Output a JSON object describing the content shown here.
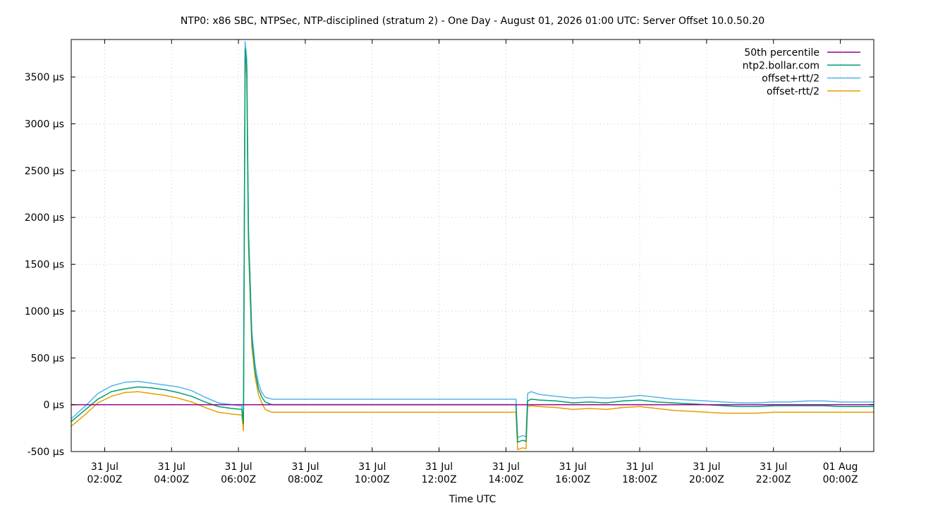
{
  "chart_data": {
    "type": "line",
    "title": "NTP0: x86 SBC, NTPSec, NTP-disciplined (stratum 2) - One Day - August 01, 2026 01:00 UTC: Server Offset 10.0.50.20",
    "xlabel": "Time UTC",
    "ylabel": "",
    "x_unit": "hours",
    "xlim": [
      1.0,
      25.0
    ],
    "ylim": [
      -500,
      3900
    ],
    "y_ticks": [
      {
        "v": -500,
        "label": "-500 µs"
      },
      {
        "v": 0,
        "label": "0 µs"
      },
      {
        "v": 500,
        "label": "500 µs"
      },
      {
        "v": 1000,
        "label": "1000 µs"
      },
      {
        "v": 1500,
        "label": "1500 µs"
      },
      {
        "v": 2000,
        "label": "2000 µs"
      },
      {
        "v": 2500,
        "label": "2500 µs"
      },
      {
        "v": 3000,
        "label": "3000 µs"
      },
      {
        "v": 3500,
        "label": "3500 µs"
      }
    ],
    "x_ticks": [
      {
        "v": 2,
        "line1": "31 Jul",
        "line2": "02:00Z"
      },
      {
        "v": 4,
        "line1": "31 Jul",
        "line2": "04:00Z"
      },
      {
        "v": 6,
        "line1": "31 Jul",
        "line2": "06:00Z"
      },
      {
        "v": 8,
        "line1": "31 Jul",
        "line2": "08:00Z"
      },
      {
        "v": 10,
        "line1": "31 Jul",
        "line2": "10:00Z"
      },
      {
        "v": 12,
        "line1": "31 Jul",
        "line2": "12:00Z"
      },
      {
        "v": 14,
        "line1": "31 Jul",
        "line2": "14:00Z"
      },
      {
        "v": 16,
        "line1": "31 Jul",
        "line2": "16:00Z"
      },
      {
        "v": 18,
        "line1": "31 Jul",
        "line2": "18:00Z"
      },
      {
        "v": 20,
        "line1": "31 Jul",
        "line2": "20:00Z"
      },
      {
        "v": 22,
        "line1": "31 Jul",
        "line2": "22:00Z"
      },
      {
        "v": 24,
        "line1": "01 Aug",
        "line2": "00:00Z"
      }
    ],
    "grid": true,
    "legend_position": "top-right",
    "series": [
      {
        "name": "50th percentile",
        "color": "#94008c",
        "x": [
          1.0,
          25.0
        ],
        "y": [
          0,
          0
        ]
      },
      {
        "name": "ntp2.bollar.com",
        "color": "#009e73",
        "x": [
          1.0,
          1.4,
          1.8,
          2.2,
          2.6,
          3.0,
          3.4,
          3.8,
          4.2,
          4.6,
          5.0,
          5.4,
          5.8,
          6.1,
          6.15,
          6.2,
          6.25,
          6.3,
          6.4,
          6.5,
          6.6,
          6.7,
          6.8,
          7.0,
          7.5,
          8,
          9,
          10,
          11,
          12,
          13,
          14,
          14.3,
          14.35,
          14.5,
          14.6,
          14.65,
          14.75,
          15,
          15.5,
          16,
          16.5,
          17,
          17.5,
          18,
          18.5,
          19,
          19.5,
          20,
          20.5,
          21,
          21.5,
          22,
          22.5,
          23,
          23.5,
          24,
          24.5,
          25
        ],
        "y": [
          -180,
          -60,
          60,
          140,
          170,
          190,
          180,
          160,
          130,
          90,
          30,
          -20,
          -40,
          -50,
          -200,
          3800,
          3600,
          1800,
          700,
          350,
          170,
          80,
          30,
          0,
          0,
          0,
          0,
          0,
          0,
          0,
          0,
          0,
          0,
          -400,
          -380,
          -390,
          40,
          60,
          50,
          40,
          20,
          30,
          20,
          40,
          50,
          30,
          20,
          10,
          0,
          -10,
          -20,
          -20,
          -10,
          -10,
          -10,
          -10,
          -20,
          -20,
          -20
        ]
      },
      {
        "name": "offset+rtt/2",
        "color": "#56b4e9",
        "x": [
          1.0,
          1.4,
          1.8,
          2.2,
          2.6,
          3.0,
          3.4,
          3.8,
          4.2,
          4.6,
          5.0,
          5.4,
          5.8,
          6.1,
          6.15,
          6.2,
          6.25,
          6.3,
          6.4,
          6.5,
          6.6,
          6.7,
          6.8,
          7.0,
          7.5,
          8,
          9,
          10,
          11,
          12,
          13,
          14,
          14.3,
          14.35,
          14.5,
          14.6,
          14.65,
          14.75,
          15,
          15.5,
          16,
          16.5,
          17,
          17.5,
          18,
          18.5,
          19,
          19.5,
          20,
          20.5,
          21,
          21.5,
          22,
          22.5,
          23,
          23.5,
          24,
          24.5,
          25
        ],
        "y": [
          -150,
          -20,
          120,
          200,
          240,
          250,
          230,
          210,
          190,
          150,
          80,
          20,
          0,
          -10,
          -180,
          3880,
          3700,
          1900,
          780,
          420,
          230,
          130,
          80,
          60,
          60,
          60,
          60,
          60,
          60,
          60,
          60,
          60,
          60,
          -350,
          -330,
          -340,
          120,
          140,
          110,
          90,
          70,
          80,
          70,
          80,
          100,
          80,
          60,
          50,
          40,
          30,
          20,
          20,
          30,
          30,
          40,
          40,
          30,
          30,
          30
        ]
      },
      {
        "name": "offset-rtt/2",
        "color": "#e69f00",
        "x": [
          1.0,
          1.4,
          1.8,
          2.2,
          2.6,
          3.0,
          3.4,
          3.8,
          4.2,
          4.6,
          5.0,
          5.4,
          5.8,
          6.1,
          6.15,
          6.2,
          6.25,
          6.3,
          6.4,
          6.5,
          6.6,
          6.7,
          6.8,
          7.0,
          7.5,
          8,
          9,
          10,
          11,
          12,
          13,
          14,
          14.3,
          14.35,
          14.5,
          14.6,
          14.65,
          14.75,
          15,
          15.5,
          16,
          16.5,
          17,
          17.5,
          18,
          18.5,
          19,
          19.5,
          20,
          20.5,
          21,
          21.5,
          22,
          22.5,
          23,
          23.5,
          24,
          24.5,
          25
        ],
        "y": [
          -230,
          -110,
          20,
          90,
          130,
          140,
          120,
          100,
          70,
          30,
          -30,
          -80,
          -100,
          -110,
          -280,
          3720,
          3500,
          1700,
          620,
          290,
          110,
          20,
          -50,
          -80,
          -80,
          -80,
          -80,
          -80,
          -80,
          -80,
          -80,
          -80,
          -80,
          -480,
          -460,
          -470,
          -20,
          -10,
          -20,
          -30,
          -50,
          -40,
          -50,
          -30,
          -20,
          -40,
          -60,
          -70,
          -80,
          -90,
          -90,
          -90,
          -80,
          -80,
          -80,
          -80,
          -80,
          -80,
          -80
        ]
      }
    ]
  }
}
